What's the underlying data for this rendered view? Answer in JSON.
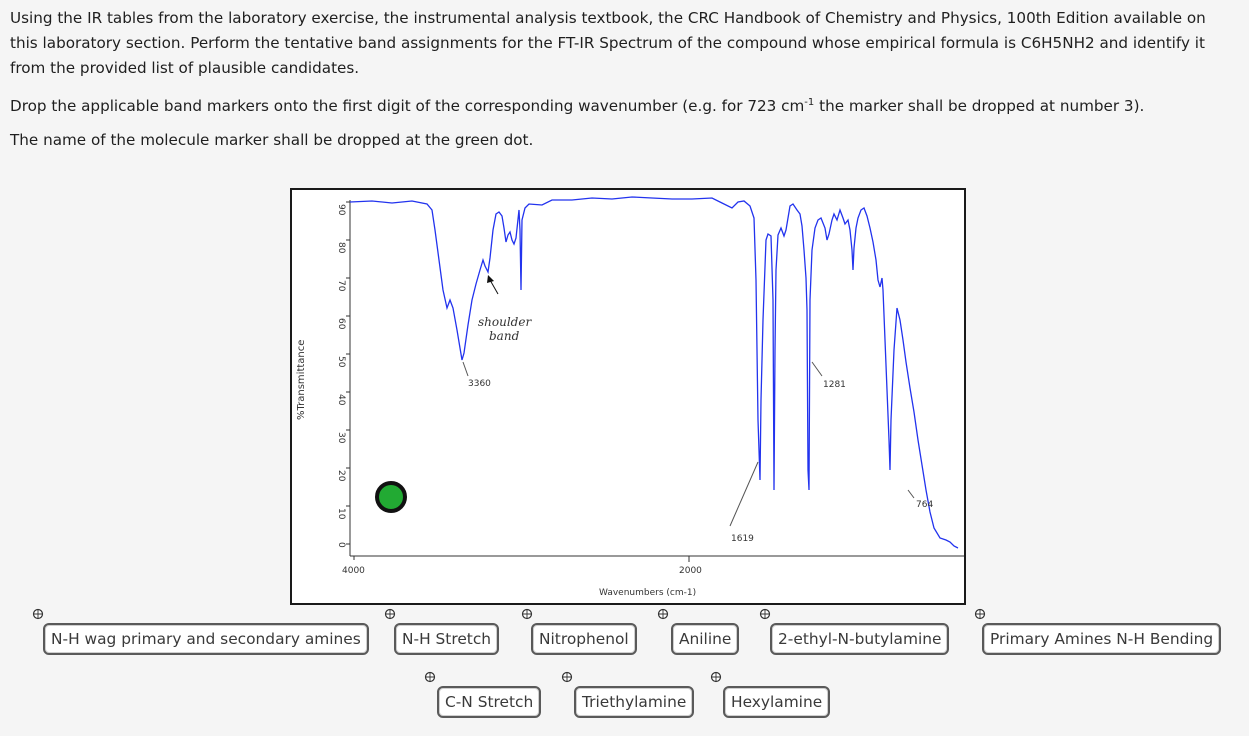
{
  "instructions": {
    "p1": "Using the IR tables from the laboratory exercise, the instrumental analysis textbook, the CRC Handbook of Chemistry and Physics, 100th Edition available on this laboratory section.  Perform the tentative band assignments for the FT-IR Spectrum of the compound whose empirical formula is C6H5NH2 and identify it from the provided list of plausible candidates.",
    "p2_before": "Drop the applicable band markers onto the first digit of the corresponding wavenumber (e.g.  for 723 cm",
    "p2_sup": "-1",
    "p2_after": " the marker shall be dropped at number 3).",
    "p3": "The name of the molecule marker shall be dropped at the green dot."
  },
  "spectrum": {
    "ylabel": "%Transmittance",
    "xlabel": "Wavenumbers (cm-1)",
    "y_ticks": [
      "90",
      "80",
      "70",
      "60",
      "50",
      "40",
      "30",
      "20",
      "10",
      "0"
    ],
    "x_ticks": [
      "4000",
      "2000"
    ],
    "annotations": {
      "shoulder_line1": "shoulder",
      "shoulder_line2": "band",
      "peak_3360": "3360",
      "peak_1281": "1281",
      "peak_1619": "1619",
      "peak_764": "764"
    }
  },
  "markers": {
    "row1": [
      "N-H wag primary and secondary amines",
      "N-H Stretch",
      "Nitrophenol",
      "Aniline",
      "2-ethyl-N-butylamine",
      "Primary Amines N-H Bending"
    ],
    "row2": [
      "C-N Stretch",
      "Triethylamine",
      "Hexylamine"
    ]
  },
  "colors": {
    "spectrum_line": "#2233ee",
    "green_dot": "#22aa33",
    "marker_border": "#5a5a5a"
  }
}
